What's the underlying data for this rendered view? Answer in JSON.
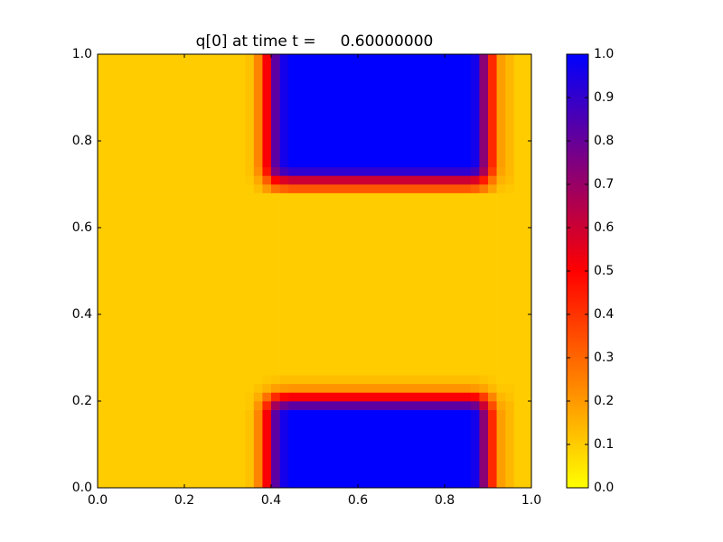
{
  "chart_data": {
    "type": "heatmap",
    "title": "q[0] at time t =     0.60000000",
    "x_edges": [
      0,
      0.34,
      0.36,
      0.38,
      0.4,
      0.42,
      0.44,
      0.86,
      0.88,
      0.9,
      0.92,
      0.94,
      0.96,
      1.0
    ],
    "y_edges": [
      0,
      0.18,
      0.2,
      0.22,
      0.24,
      0.26,
      0.68,
      0.7,
      0.72,
      0.74,
      1.0
    ],
    "values": [
      [
        0.1,
        0.12,
        0.24,
        0.51,
        0.82,
        0.96,
        1.0,
        0.96,
        0.73,
        0.42,
        0.19,
        0.14,
        0.1
      ],
      [
        0.1,
        0.11,
        0.21,
        0.42,
        0.68,
        0.78,
        0.82,
        0.78,
        0.6,
        0.35,
        0.17,
        0.14,
        0.1
      ],
      [
        0.1,
        0.11,
        0.16,
        0.28,
        0.42,
        0.49,
        0.51,
        0.49,
        0.38,
        0.24,
        0.14,
        0.12,
        0.1
      ],
      [
        0.1,
        0.1,
        0.12,
        0.15,
        0.19,
        0.2,
        0.21,
        0.2,
        0.18,
        0.14,
        0.11,
        0.11,
        0.1
      ],
      [
        0.1,
        0.1,
        0.1,
        0.11,
        0.12,
        0.13,
        0.13,
        0.13,
        0.12,
        0.11,
        0.1,
        0.1,
        0.1
      ],
      [
        0.1,
        0.1,
        0.1,
        0.1,
        0.1,
        0.1,
        0.1,
        0.1,
        0.1,
        0.1,
        0.1,
        0.1,
        0.1
      ],
      [
        0.1,
        0.1,
        0.13,
        0.2,
        0.28,
        0.31,
        0.33,
        0.31,
        0.26,
        0.18,
        0.12,
        0.11,
        0.1
      ],
      [
        0.1,
        0.11,
        0.17,
        0.32,
        0.5,
        0.57,
        0.6,
        0.57,
        0.45,
        0.27,
        0.15,
        0.13,
        0.1
      ],
      [
        0.1,
        0.12,
        0.22,
        0.46,
        0.75,
        0.87,
        0.91,
        0.87,
        0.67,
        0.38,
        0.18,
        0.14,
        0.1
      ],
      [
        0.1,
        0.12,
        0.24,
        0.51,
        0.82,
        0.96,
        1.0,
        0.96,
        0.73,
        0.42,
        0.19,
        0.14,
        0.1
      ]
    ],
    "colormap": [
      "#ffff00",
      "#ff0000",
      "#0000ff"
    ],
    "xlim": [
      0,
      1
    ],
    "ylim": [
      0,
      1
    ],
    "xticks": [
      {
        "value": 0,
        "label": "0.0"
      },
      {
        "value": 0.2,
        "label": "0.2"
      },
      {
        "value": 0.4,
        "label": "0.4"
      },
      {
        "value": 0.6,
        "label": "0.6"
      },
      {
        "value": 0.8,
        "label": "0.8"
      },
      {
        "value": 1,
        "label": "1.0"
      }
    ],
    "yticks": [
      {
        "value": 0,
        "label": "0.0"
      },
      {
        "value": 0.2,
        "label": "0.2"
      },
      {
        "value": 0.4,
        "label": "0.4"
      },
      {
        "value": 0.6,
        "label": "0.6"
      },
      {
        "value": 0.8,
        "label": "0.8"
      },
      {
        "value": 1,
        "label": "1.0"
      }
    ],
    "colorbar": {
      "lim": [
        0,
        1
      ],
      "ticks": [
        {
          "value": 0,
          "label": "0.0"
        },
        {
          "value": 0.1,
          "label": "0.1"
        },
        {
          "value": 0.2,
          "label": "0.2"
        },
        {
          "value": 0.3,
          "label": "0.3"
        },
        {
          "value": 0.4,
          "label": "0.4"
        },
        {
          "value": 0.5,
          "label": "0.5"
        },
        {
          "value": 0.6,
          "label": "0.6"
        },
        {
          "value": 0.7,
          "label": "0.7"
        },
        {
          "value": 0.8,
          "label": "0.8"
        },
        {
          "value": 0.9,
          "label": "0.9"
        },
        {
          "value": 1,
          "label": "1.0"
        }
      ]
    }
  }
}
